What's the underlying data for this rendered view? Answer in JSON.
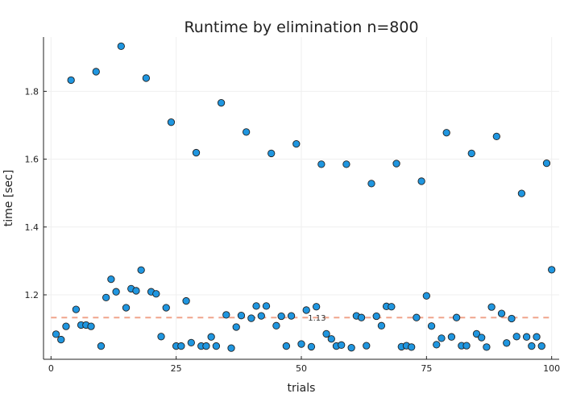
{
  "chart_data": {
    "type": "scatter",
    "title": "Runtime by elimination  n=800",
    "xlabel": "trials",
    "ylabel": "time [sec]",
    "xlim": [
      -1.5,
      101.5
    ],
    "ylim": [
      1.01,
      1.96
    ],
    "xticks": [
      0,
      25,
      50,
      75,
      100
    ],
    "yticks": [
      1.2,
      1.4,
      1.6,
      1.8
    ],
    "ytick_labels": [
      "1.2",
      "1.4",
      "1.6",
      "1.8"
    ],
    "grid": true,
    "series": [
      {
        "marker_color": "#1f96e0",
        "marker_edge": "#222222",
        "points": [
          [
            1,
            1.084
          ],
          [
            2,
            1.068
          ],
          [
            3,
            1.107
          ],
          [
            4,
            1.833
          ],
          [
            5,
            1.157
          ],
          [
            6,
            1.111
          ],
          [
            7,
            1.111
          ],
          [
            8,
            1.107
          ],
          [
            9,
            1.858
          ],
          [
            10,
            1.049
          ],
          [
            11,
            1.192
          ],
          [
            12,
            1.246
          ],
          [
            13,
            1.209
          ],
          [
            14,
            1.933
          ],
          [
            15,
            1.162
          ],
          [
            16,
            1.218
          ],
          [
            17,
            1.212
          ],
          [
            18,
            1.273
          ],
          [
            19,
            1.839
          ],
          [
            20,
            1.209
          ],
          [
            21,
            1.203
          ],
          [
            22,
            1.077
          ],
          [
            23,
            1.162
          ],
          [
            24,
            1.709
          ],
          [
            25,
            1.049
          ],
          [
            26,
            1.049
          ],
          [
            27,
            1.182
          ],
          [
            28,
            1.059
          ],
          [
            29,
            1.619
          ],
          [
            30,
            1.049
          ],
          [
            31,
            1.049
          ],
          [
            32,
            1.076
          ],
          [
            33,
            1.049
          ],
          [
            34,
            1.766
          ],
          [
            35,
            1.141
          ],
          [
            36,
            1.043
          ],
          [
            37,
            1.105
          ],
          [
            38,
            1.139
          ],
          [
            39,
            1.68
          ],
          [
            40,
            1.131
          ],
          [
            41,
            1.167
          ],
          [
            42,
            1.138
          ],
          [
            43,
            1.167
          ],
          [
            44,
            1.617
          ],
          [
            45,
            1.109
          ],
          [
            46,
            1.137
          ],
          [
            47,
            1.049
          ],
          [
            48,
            1.138
          ],
          [
            49,
            1.645
          ],
          [
            50,
            1.055
          ],
          [
            51,
            1.155
          ],
          [
            52,
            1.047
          ],
          [
            53,
            1.165
          ],
          [
            54,
            1.585
          ],
          [
            55,
            1.085
          ],
          [
            56,
            1.07
          ],
          [
            57,
            1.049
          ],
          [
            58,
            1.052
          ],
          [
            59,
            1.585
          ],
          [
            60,
            1.044
          ],
          [
            61,
            1.138
          ],
          [
            62,
            1.133
          ],
          [
            63,
            1.05
          ],
          [
            64,
            1.528
          ],
          [
            65,
            1.137
          ],
          [
            66,
            1.109
          ],
          [
            67,
            1.166
          ],
          [
            68,
            1.165
          ],
          [
            69,
            1.587
          ],
          [
            70,
            1.047
          ],
          [
            71,
            1.05
          ],
          [
            72,
            1.046
          ],
          [
            73,
            1.133
          ],
          [
            74,
            1.535
          ],
          [
            75,
            1.197
          ],
          [
            76,
            1.108
          ],
          [
            77,
            1.053
          ],
          [
            78,
            1.072
          ],
          [
            79,
            1.678
          ],
          [
            80,
            1.076
          ],
          [
            81,
            1.133
          ],
          [
            82,
            1.05
          ],
          [
            83,
            1.05
          ],
          [
            84,
            1.617
          ],
          [
            85,
            1.085
          ],
          [
            86,
            1.074
          ],
          [
            87,
            1.046
          ],
          [
            88,
            1.164
          ],
          [
            89,
            1.667
          ],
          [
            90,
            1.145
          ],
          [
            91,
            1.058
          ],
          [
            92,
            1.13
          ],
          [
            93,
            1.077
          ],
          [
            94,
            1.499
          ],
          [
            95,
            1.076
          ],
          [
            96,
            1.049
          ],
          [
            97,
            1.076
          ],
          [
            98,
            1.049
          ],
          [
            99,
            1.588
          ],
          [
            100,
            1.274
          ]
        ]
      }
    ],
    "reference_line": {
      "y": 1.133,
      "label": "1.13",
      "label_x": 51,
      "color": "#f0a48c",
      "style": "dashed"
    }
  }
}
